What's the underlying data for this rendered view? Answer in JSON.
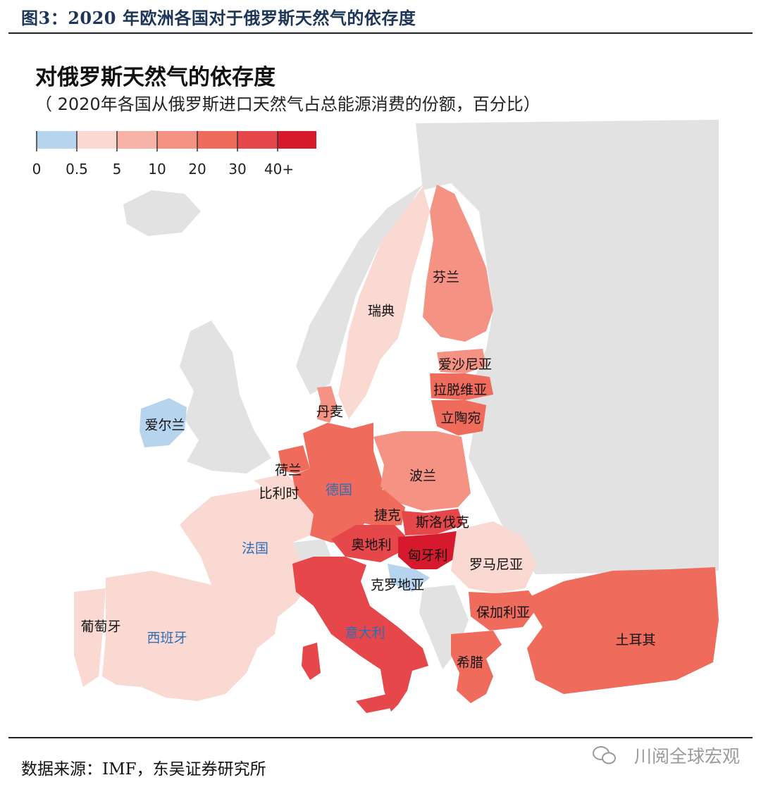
{
  "figure_caption": "图3：2020 年欧洲各国对于俄罗斯天然气的依存度",
  "map": {
    "title": "对俄罗斯天然气的依存度",
    "subtitle": "（ 2020年各国从俄罗斯进口天然气占总能源消费的份额，百分比）",
    "legend": {
      "ticks": [
        "0",
        "0.5",
        "5",
        "10",
        "20",
        "30",
        "40+"
      ],
      "colors": [
        "#b7d4ee",
        "#fbd9d3",
        "#f7b3a6",
        "#f49383",
        "#ef6b5c",
        "#e5474a",
        "#d7192e"
      ]
    },
    "labels": {
      "finland": "芬兰",
      "sweden": "瑞典",
      "estonia": "爱沙尼亚",
      "latvia": "拉脱维亚",
      "lithuania": "立陶宛",
      "denmark": "丹麦",
      "ireland": "爱尔兰",
      "netherlands": "荷兰",
      "belgium": "比利时",
      "germany": "德国",
      "poland": "波兰",
      "czech": "捷克",
      "slovakia": "斯洛伐克",
      "austria": "奥地利",
      "hungary": "匈牙利",
      "france": "法国",
      "romania": "罗马尼亚",
      "croatia": "克罗地亚",
      "bulgaria": "保加利亚",
      "portugal": "葡萄牙",
      "spain": "西班牙",
      "italy": "意大利",
      "greece": "希腊",
      "turkey": "土耳其"
    },
    "colors": {
      "no_data": "#e2e2e2",
      "sea": "#ffffff",
      "blue_label": "#2f6db5"
    }
  },
  "source": "数据来源：IMF，东吴证券研究所",
  "watermark": "川阅全球宏观"
}
